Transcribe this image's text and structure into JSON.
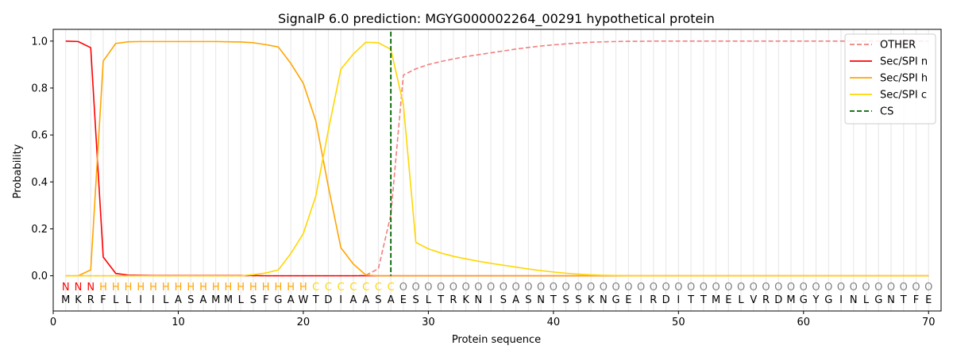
{
  "chart_data": {
    "type": "line",
    "title": "SignalP 6.0 prediction: MGYG000002264_00291 hypothetical protein",
    "xlabel": "Protein sequence",
    "ylabel": "Probability",
    "xlim": [
      0,
      71
    ],
    "ylim": [
      -0.15,
      1.05
    ],
    "x_ticks": [
      0,
      10,
      20,
      30,
      40,
      50,
      60,
      70
    ],
    "y_ticks": [
      0.0,
      0.2,
      0.4,
      0.6,
      0.8,
      1.0
    ],
    "y_tick_labels": [
      "0.0",
      "0.2",
      "0.4",
      "0.6",
      "0.8",
      "1.0"
    ],
    "grid": "vertical lines at each residue",
    "legend_position": "top-right",
    "sequence": [
      "M",
      "K",
      "R",
      "F",
      "L",
      "L",
      "I",
      "I",
      "L",
      "A",
      "S",
      "A",
      "M",
      "M",
      "L",
      "S",
      "F",
      "G",
      "A",
      "W",
      "T",
      "D",
      "I",
      "A",
      "A",
      "S",
      "A",
      "E",
      "S",
      "L",
      "T",
      "R",
      "K",
      "N",
      "I",
      "S",
      "A",
      "S",
      "N",
      "T",
      "S",
      "S",
      "K",
      "N",
      "G",
      "E",
      "I",
      "R",
      "D",
      "I",
      "T",
      "T",
      "M",
      "E",
      "L",
      "V",
      "R",
      "D",
      "M",
      "G",
      "Y",
      "G",
      "I",
      "N",
      "L",
      "G",
      "N",
      "T",
      "F",
      "E"
    ],
    "annotations": [
      "N",
      "N",
      "N",
      "H",
      "H",
      "H",
      "H",
      "H",
      "H",
      "H",
      "H",
      "H",
      "H",
      "H",
      "H",
      "H",
      "H",
      "H",
      "H",
      "H",
      "C",
      "C",
      "C",
      "C",
      "C",
      "C",
      "C",
      "O",
      "O",
      "O",
      "O",
      "O",
      "O",
      "O",
      "O",
      "O",
      "O",
      "O",
      "O",
      "O",
      "O",
      "O",
      "O",
      "O",
      "O",
      "O",
      "O",
      "O",
      "O",
      "O",
      "O",
      "O",
      "O",
      "O",
      "O",
      "O",
      "O",
      "O",
      "O",
      "O",
      "O",
      "O",
      "O",
      "O",
      "O",
      "O",
      "O",
      "O",
      "O",
      "O"
    ],
    "annotation_colors": {
      "N": "#ff0000",
      "H": "#ffa500",
      "C": "#ffd700",
      "O": "#808080"
    },
    "cleavage_site": 27,
    "series": [
      {
        "name": "OTHER",
        "color": "#f08080",
        "dash": "dashed",
        "values": [
          0,
          0,
          0,
          0,
          0,
          0,
          0,
          0,
          0,
          0,
          0,
          0,
          0,
          0,
          0,
          0,
          0,
          0,
          0,
          0,
          0,
          0,
          0,
          0,
          0.002,
          0.03,
          0.26,
          0.855,
          0.882,
          0.9,
          0.913,
          0.924,
          0.934,
          0.942,
          0.95,
          0.958,
          0.966,
          0.973,
          0.979,
          0.984,
          0.988,
          0.992,
          0.995,
          0.997,
          0.998,
          0.999,
          0.999,
          1,
          1,
          1,
          1,
          1,
          1,
          1,
          1,
          1,
          1,
          1,
          1,
          1,
          1,
          1,
          1,
          1,
          1,
          1,
          1,
          1,
          1,
          1
        ]
      },
      {
        "name": "Sec/SPI n",
        "color": "#ff0000",
        "dash": "solid",
        "values": [
          1.0,
          0.998,
          0.972,
          0.08,
          0.01,
          0.003,
          0.002,
          0.001,
          0.001,
          0.001,
          0.001,
          0.001,
          0.001,
          0.001,
          0.001,
          0.001,
          0,
          0,
          0,
          0,
          0,
          0,
          0,
          0,
          0,
          0,
          0,
          0,
          0,
          0,
          0,
          0,
          0,
          0,
          0,
          0,
          0,
          0,
          0,
          0,
          0,
          0,
          0,
          0,
          0,
          0,
          0,
          0,
          0,
          0,
          0,
          0,
          0,
          0,
          0,
          0,
          0,
          0,
          0,
          0,
          0,
          0,
          0,
          0,
          0,
          0,
          0,
          0,
          0,
          0
        ]
      },
      {
        "name": "Sec/SPI h",
        "color": "#ffa500",
        "dash": "solid",
        "values": [
          0,
          0,
          0.025,
          0.915,
          0.99,
          0.997,
          0.998,
          0.998,
          0.998,
          0.998,
          0.998,
          0.998,
          0.998,
          0.997,
          0.996,
          0.993,
          0.985,
          0.975,
          0.905,
          0.82,
          0.66,
          0.38,
          0.12,
          0.05,
          0.003,
          0,
          0,
          0,
          0,
          0,
          0,
          0,
          0,
          0,
          0,
          0,
          0,
          0,
          0,
          0,
          0,
          0,
          0,
          0,
          0,
          0,
          0,
          0,
          0,
          0,
          0,
          0,
          0,
          0,
          0,
          0,
          0,
          0,
          0,
          0,
          0,
          0,
          0,
          0,
          0,
          0,
          0,
          0,
          0,
          0
        ]
      },
      {
        "name": "Sec/SPI c",
        "color": "#ffd700",
        "dash": "solid",
        "values": [
          0,
          0,
          0,
          0,
          0,
          0,
          0,
          0,
          0,
          0,
          0,
          0,
          0,
          0,
          0,
          0.005,
          0.012,
          0.025,
          0.095,
          0.18,
          0.34,
          0.62,
          0.88,
          0.945,
          0.995,
          0.993,
          0.965,
          0.73,
          0.142,
          0.115,
          0.097,
          0.083,
          0.072,
          0.062,
          0.053,
          0.045,
          0.037,
          0.029,
          0.022,
          0.016,
          0.011,
          0.007,
          0.004,
          0.002,
          0.001,
          0,
          0,
          0,
          0,
          0,
          0,
          0,
          0,
          0,
          0,
          0,
          0,
          0,
          0,
          0,
          0,
          0,
          0,
          0,
          0,
          0,
          0,
          0,
          0,
          0
        ]
      }
    ],
    "legend": [
      {
        "label": "OTHER",
        "color": "#f08080",
        "dash": "dashed"
      },
      {
        "label": "Sec/SPI n",
        "color": "#ff0000",
        "dash": "solid"
      },
      {
        "label": "Sec/SPI h",
        "color": "#ffa500",
        "dash": "solid"
      },
      {
        "label": "Sec/SPI c",
        "color": "#ffd700",
        "dash": "solid"
      },
      {
        "label": "CS",
        "color": "#006400",
        "dash": "dashed"
      }
    ]
  }
}
